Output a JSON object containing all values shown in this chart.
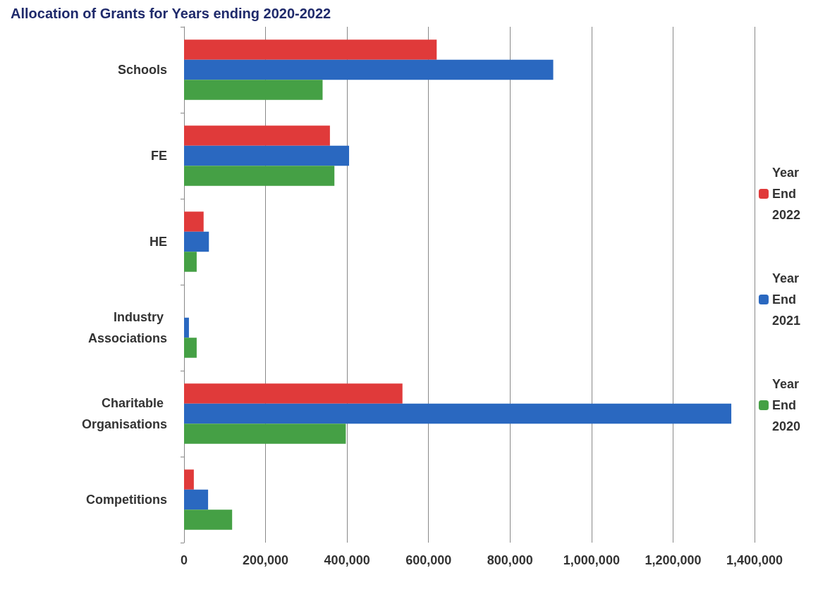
{
  "chart_data": {
    "type": "bar",
    "orientation": "horizontal",
    "title": "Allocation of Grants for Years ending 2020-2022",
    "categories": [
      "Schools",
      "FE",
      "HE",
      "Industry Associations",
      "Charitable Organisations",
      "Competitions"
    ],
    "series": [
      {
        "name": "Year End 2022",
        "color": "#e03a3a",
        "values": [
          620000,
          358000,
          48000,
          0,
          536000,
          24000
        ]
      },
      {
        "name": "Year End 2021",
        "color": "#2a68c0",
        "values": [
          906000,
          405000,
          61000,
          12000,
          1343000,
          59000
        ]
      },
      {
        "name": "Year End 2020",
        "color": "#45a045",
        "values": [
          340000,
          369000,
          31000,
          31000,
          397000,
          118000
        ]
      }
    ],
    "xlim": [
      0,
      1400000
    ],
    "xticks": [
      {
        "value": 0,
        "label": "0"
      },
      {
        "value": 200000,
        "label": "200,000"
      },
      {
        "value": 400000,
        "label": "400,000"
      },
      {
        "value": 600000,
        "label": "600,000"
      },
      {
        "value": 800000,
        "label": "800,000"
      },
      {
        "value": 1000000,
        "label": "1,000,000"
      },
      {
        "value": 1200000,
        "label": "1,200,000"
      },
      {
        "value": 1400000,
        "label": "1,400,000"
      }
    ],
    "grid": "x",
    "legend": "right"
  }
}
